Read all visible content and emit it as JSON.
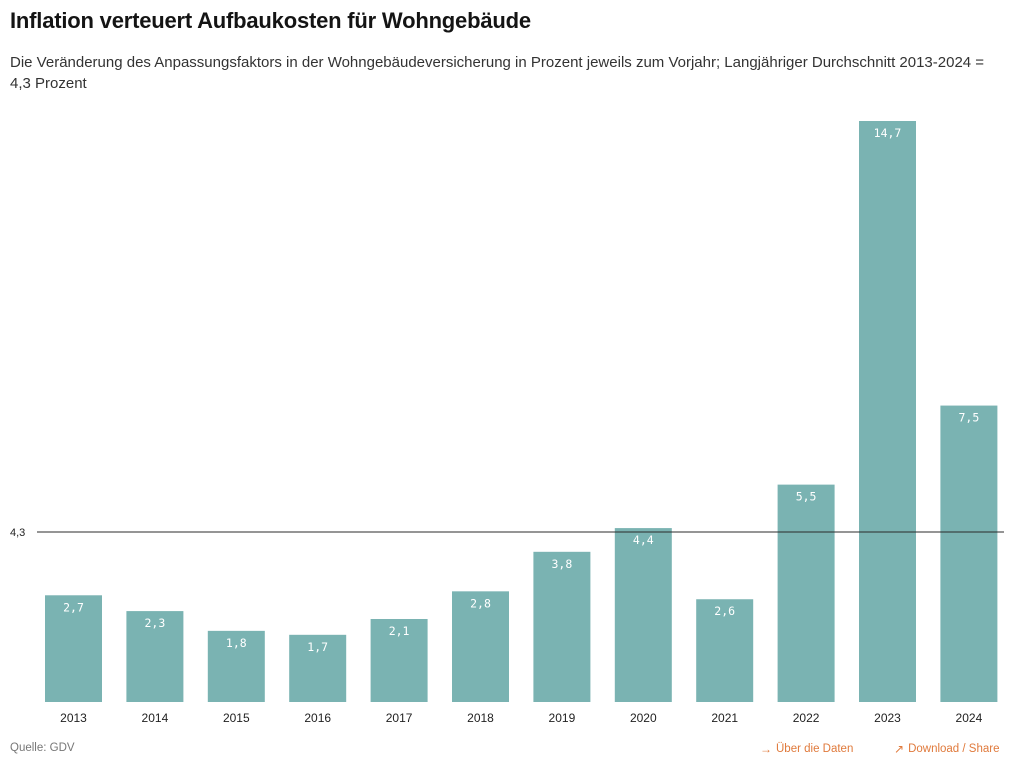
{
  "title": "Inflation verteuert Aufbaukosten für Wohngebäude",
  "subtitle": "Die Veränderung des Anpassungsfaktors in der Wohngebäudeversicherung in Prozent jeweils zum Vorjahr; Langjähriger Durchschnitt 2013-2024 = 4,3 Prozent",
  "footer": {
    "source": "Quelle: GDV",
    "data_link": "Über die Daten",
    "share_link": "Download / Share",
    "link_color": "#e07a3c"
  },
  "chart_data": {
    "type": "bar",
    "title": "Inflation verteuert Aufbaukosten für Wohngebäude",
    "categories": [
      "2013",
      "2014",
      "2015",
      "2016",
      "2017",
      "2018",
      "2019",
      "2020",
      "2021",
      "2022",
      "2023",
      "2024"
    ],
    "values": [
      2.7,
      2.3,
      1.8,
      1.7,
      2.1,
      2.8,
      3.8,
      4.4,
      2.6,
      5.5,
      14.7,
      7.5
    ],
    "value_labels": [
      "2,7",
      "2,3",
      "1,8",
      "1,7",
      "2,1",
      "2,8",
      "3,8",
      "4,4",
      "2,6",
      "5,5",
      "14,7",
      "7,5"
    ],
    "reference_line": {
      "value": 4.3,
      "label": "4,3"
    },
    "ylim": [
      0,
      14.7
    ],
    "bar_color": "#7ab3b2",
    "grid": false,
    "xlabel": "",
    "ylabel": ""
  }
}
